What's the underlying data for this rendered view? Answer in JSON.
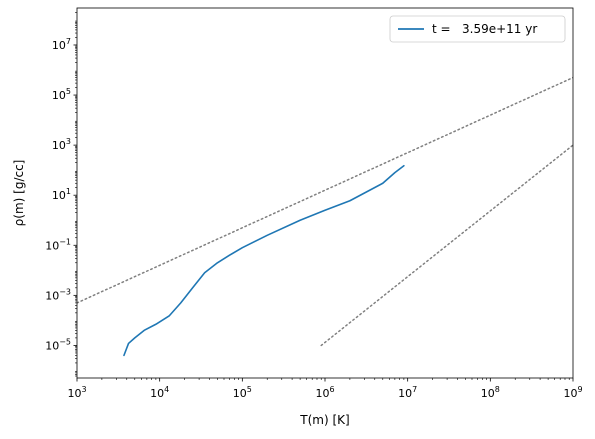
{
  "chart_data": {
    "type": "line",
    "xlabel": "T(m) [K]",
    "ylabel": "ρ(m) [g/cc]",
    "x_scale": "log",
    "y_scale": "log",
    "xlim": [
      1000,
      1000000000
    ],
    "ylim": [
      5e-07,
      300000000.0
    ],
    "x_ticks": [
      {
        "value": 1000,
        "base": "10",
        "exp": "3"
      },
      {
        "value": 10000,
        "base": "10",
        "exp": "4"
      },
      {
        "value": 100000,
        "base": "10",
        "exp": "5"
      },
      {
        "value": 1000000,
        "base": "10",
        "exp": "6"
      },
      {
        "value": 10000000,
        "base": "10",
        "exp": "7"
      },
      {
        "value": 100000000,
        "base": "10",
        "exp": "8"
      },
      {
        "value": 1000000000,
        "base": "10",
        "exp": "9"
      }
    ],
    "y_ticks": [
      {
        "value": 1e-05,
        "base": "10",
        "exp": "−5"
      },
      {
        "value": 0.001,
        "base": "10",
        "exp": "−3"
      },
      {
        "value": 0.1,
        "base": "10",
        "exp": "−1"
      },
      {
        "value": 10,
        "base": "10",
        "exp": "1"
      },
      {
        "value": 1000,
        "base": "10",
        "exp": "3"
      },
      {
        "value": 100000,
        "base": "10",
        "exp": "5"
      },
      {
        "value": 10000000,
        "base": "10",
        "exp": "7"
      }
    ],
    "legend": {
      "placement": "top-right",
      "entries": [
        "t =   3.59e+11 yr"
      ]
    },
    "series": [
      {
        "name": "t =   3.59e+11 yr",
        "style": "solid",
        "color": "#1f77b4",
        "x": [
          3700,
          4200,
          5000,
          6500,
          9000,
          13000,
          18000,
          25000,
          35000,
          50000,
          70000,
          100000,
          200000,
          500000,
          1000000,
          2000000,
          5000000,
          7000000,
          9000000
        ],
        "y": [
          4e-06,
          1.2e-05,
          2e-05,
          4e-05,
          7e-05,
          0.00015,
          0.0005,
          0.002,
          0.008,
          0.02,
          0.04,
          0.08,
          0.25,
          1,
          2.5,
          6,
          30,
          80,
          150
        ]
      },
      {
        "name": "",
        "style": "dotted",
        "color": "#808080",
        "x": [
          1000,
          1000000000
        ],
        "y": [
          0.0005,
          500000
        ]
      },
      {
        "name": "",
        "style": "dotted",
        "color": "#808080",
        "x": [
          900000,
          1000000000
        ],
        "y": [
          1e-05,
          1000
        ]
      }
    ]
  }
}
